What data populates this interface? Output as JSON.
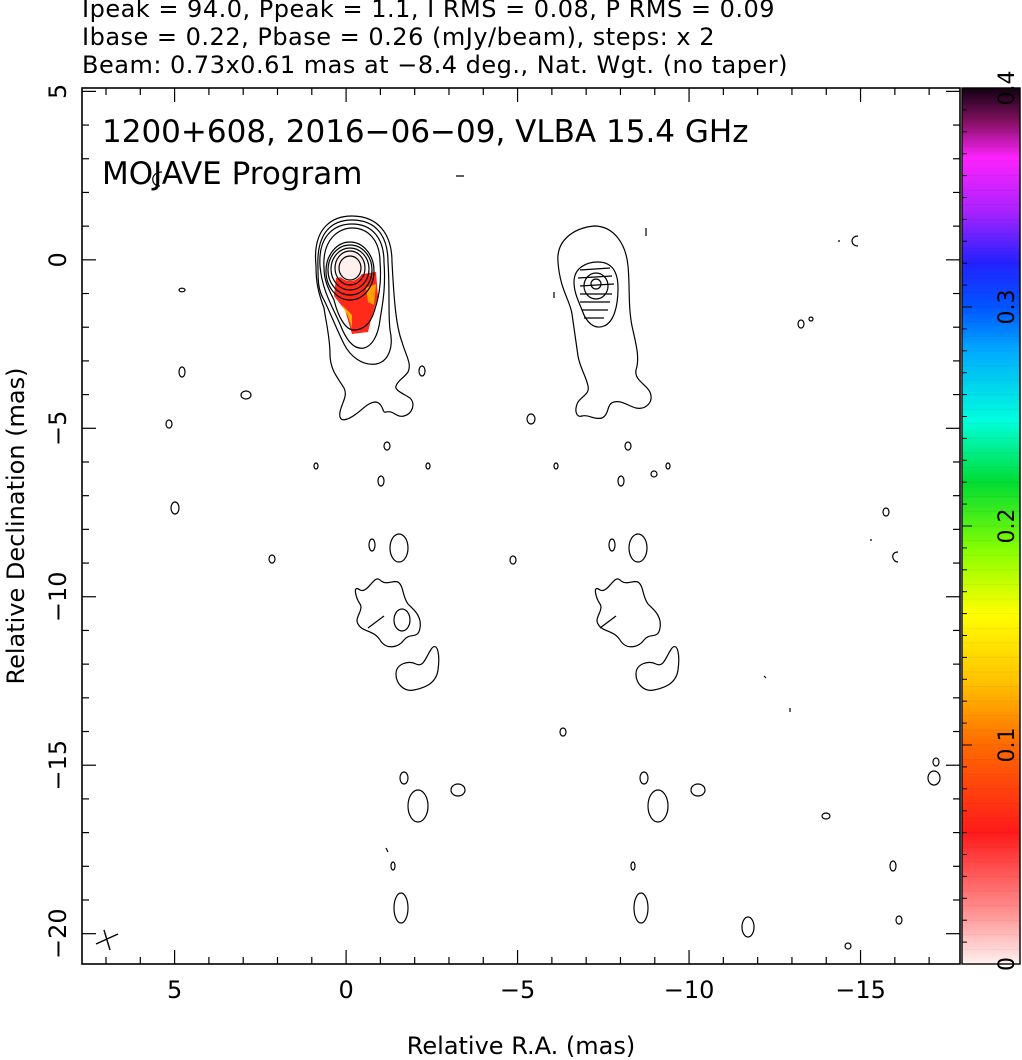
{
  "header": {
    "line1": "Ipeak = 94.0, Ppeak = 1.1, I RMS = 0.08, P RMS = 0.09",
    "line2": "Ibase = 0.22, Pbase = 0.26 (mJy/beam), steps: x 2",
    "line3": "Beam: 0.73x0.61 mas at −8.4 deg., Nat. Wgt. (no taper)"
  },
  "chart_data": {
    "type": "contour",
    "annotation_title": "1200+608, 2016−06−09, VLBA 15.4 GHz",
    "annotation_program": "MOJAVE Program",
    "xlabel": "Relative R.A. (mas)",
    "ylabel": "Relative Declination (mas)",
    "xlim": [
      7.7,
      -17.9
    ],
    "ylim": [
      -20.9,
      5.1
    ],
    "x_ticks": [
      5,
      0,
      -5,
      -10,
      -15
    ],
    "x_tick_labels": [
      "5",
      "0",
      "−5",
      "−10",
      "−15"
    ],
    "y_ticks": [
      5,
      0,
      -5,
      -10,
      -15,
      -20
    ],
    "y_tick_labels": [
      "5",
      "0",
      "−5",
      "−10",
      "−15",
      "−20"
    ],
    "colorbar": {
      "range": [
        0,
        0.4
      ],
      "ticks": [
        0,
        0.1,
        0.2,
        0.3,
        0.4
      ],
      "tick_labels": [
        "0",
        "0.1",
        "0.2",
        "0.3",
        "0.4"
      ]
    },
    "panels": [
      {
        "name": "total intensity",
        "core_ra": 0,
        "core_dec": 0
      },
      {
        "name": "polarization",
        "core_ra": -7,
        "core_dec": -0.6
      }
    ]
  }
}
